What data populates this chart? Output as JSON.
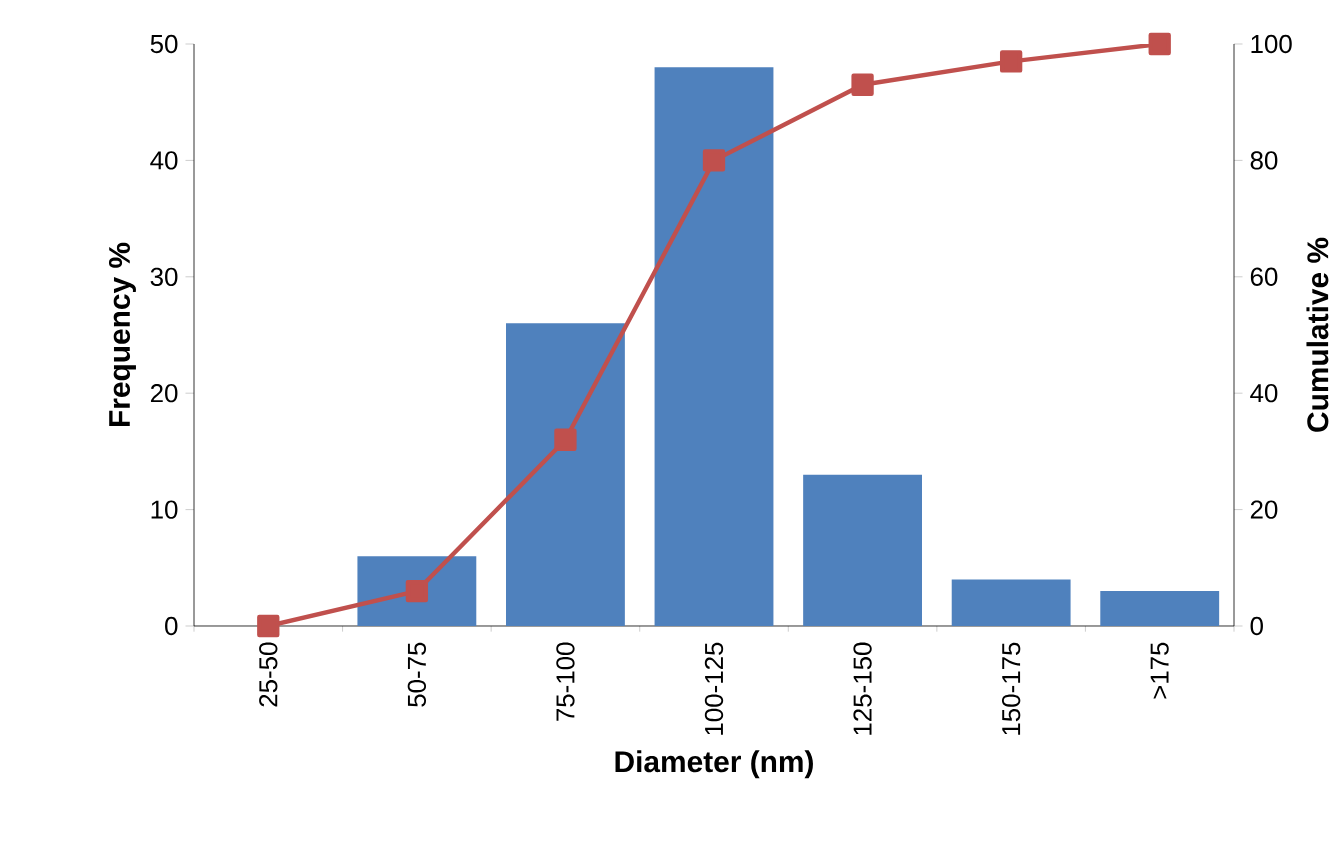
{
  "chart_data": {
    "type": "bar",
    "xlabel": "Diameter (nm)",
    "ylabel": "Frequency %",
    "y2label": "Cumulative %",
    "categories": [
      "25-50",
      "50-75",
      "75-100",
      "100-125",
      "125-150",
      "150-175",
      ">175"
    ],
    "series": [
      {
        "color": "#4f81bd",
        "values": [
          0,
          6,
          26,
          48,
          13,
          4,
          3
        ]
      },
      {
        "type": "line",
        "axis": "y2",
        "color": "#c0504d",
        "values": [
          0,
          6,
          32,
          80,
          93,
          97,
          100
        ]
      }
    ],
    "marker": "square",
    "ylim": [
      0,
      50
    ],
    "yticks": [
      0,
      10,
      20,
      30,
      40,
      50
    ],
    "y2lim": [
      0,
      100
    ],
    "y2ticks": [
      0,
      20,
      40,
      60,
      80,
      100
    ]
  }
}
